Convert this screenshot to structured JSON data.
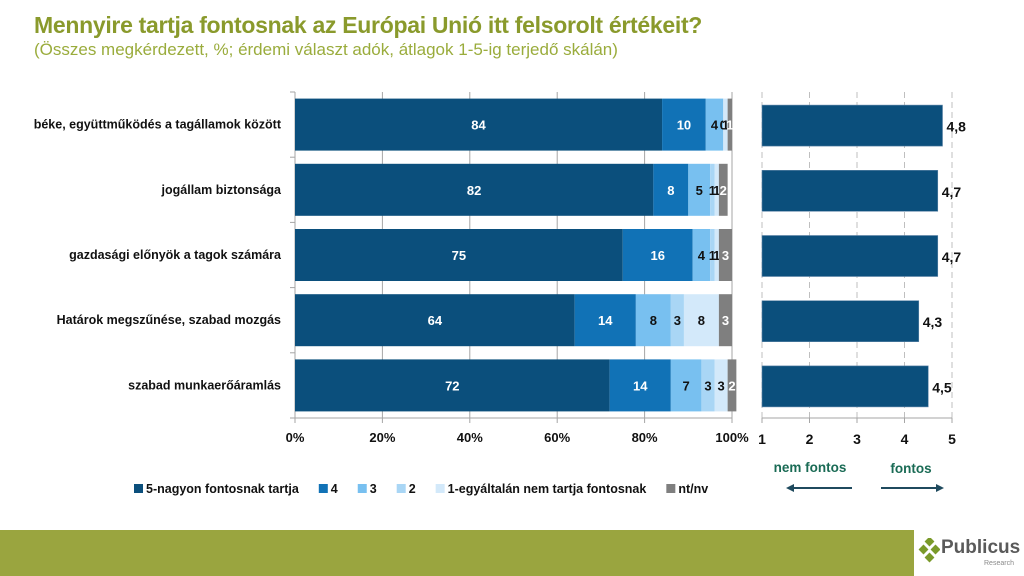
{
  "header": {
    "title": "Mennyire tartja fontosnak az Európai Unió itt felsorolt értékeit?",
    "subtitle": "(Összes megkérdezett, %; érdemi választ adók, átlagok 1-5-ig terjedő skálán)"
  },
  "brand": {
    "name": "Publicus",
    "sub": "Research",
    "footer_color": "#9aa53f"
  },
  "chart_data": [
    {
      "type": "bar",
      "orientation": "horizontal",
      "stacked": true,
      "title": "",
      "categories": [
        "béke, együttműködés a tagállamok között",
        "jogállam biztonsága",
        "gazdasági előnyök a tagok számára",
        "Határok megszűnése, szabad mozgás",
        "szabad munkaerőáramlás"
      ],
      "series": [
        {
          "name": "5-nagyon fontosnak tartja",
          "color": "#0b4f7c",
          "label_color": "#ffffff",
          "values": [
            84,
            82,
            75,
            64,
            72
          ]
        },
        {
          "name": "4",
          "color": "#1172b6",
          "label_color": "#ffffff",
          "values": [
            10,
            8,
            16,
            14,
            14
          ]
        },
        {
          "name": "3",
          "color": "#78c0f0",
          "label_color": "#111111",
          "values": [
            4,
            5,
            4,
            8,
            7
          ]
        },
        {
          "name": "2",
          "color": "#a9d6f5",
          "label_color": "#111111",
          "values": [
            0,
            1,
            1,
            3,
            3
          ]
        },
        {
          "name": "1-egyáltalán nem tartja fontosnak",
          "color": "#d3e9fa",
          "label_color": "#111111",
          "values": [
            1,
            1,
            1,
            8,
            3
          ]
        },
        {
          "name": "nt/nv",
          "color": "#7f7f7f",
          "label_color": "#ffffff",
          "values": [
            1,
            2,
            3,
            3,
            2
          ]
        }
      ],
      "xlim": [
        0,
        100
      ],
      "xticks": [
        "0%",
        "20%",
        "40%",
        "60%",
        "80%",
        "100%"
      ],
      "grid": true,
      "legend": "bottom"
    },
    {
      "type": "bar",
      "orientation": "horizontal",
      "title": "",
      "categories": [
        "béke, együttműködés a tagállamok között",
        "jogállam biztonsága",
        "gazdasági előnyök a tagok számára",
        "Határok megszűnése, szabad mozgás",
        "szabad munkaerőáramlás"
      ],
      "values": [
        4.8,
        4.7,
        4.7,
        4.3,
        4.5
      ],
      "value_labels": [
        "4,8",
        "4,7",
        "4,7",
        "4,3",
        "4,5"
      ],
      "color": "#0b4f7c",
      "xlim": [
        1,
        5
      ],
      "xticks": [
        "1",
        "2",
        "3",
        "4",
        "5"
      ],
      "grid": "dashed",
      "annotations": {
        "left": "nem fontos",
        "right": "fontos",
        "color": "#1a6b55",
        "arrow_color": "#1f4a5e"
      }
    }
  ]
}
